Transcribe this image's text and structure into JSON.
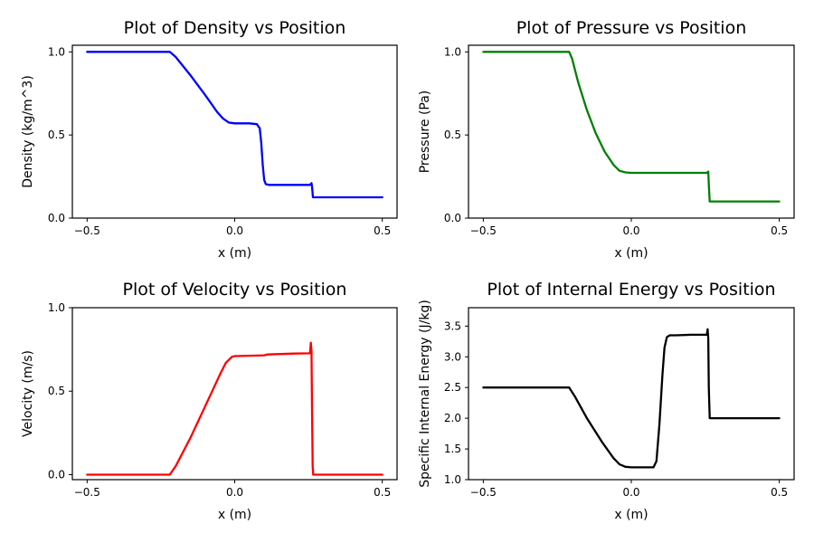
{
  "chart_data": [
    {
      "type": "line",
      "title": "Plot of Density vs Position",
      "xlabel": "x (m)",
      "ylabel": "Density (kg/m^3)",
      "xlim": [
        -0.55,
        0.55
      ],
      "ylim": [
        0.0,
        1.04
      ],
      "xticks": [
        -0.5,
        0.0,
        0.5
      ],
      "xtick_labels": [
        "−0.5",
        "0.0",
        "0.5"
      ],
      "yticks": [
        0.0,
        0.5,
        1.0
      ],
      "ytick_labels": [
        "0.0",
        "0.5",
        "1.0"
      ],
      "color": "#0000ff",
      "series": [
        {
          "x": [
            -0.5,
            -0.22,
            -0.2,
            -0.15,
            -0.1,
            -0.06,
            -0.04,
            -0.02,
            0.0,
            0.05,
            0.075,
            0.085,
            0.09,
            0.095,
            0.1,
            0.105,
            0.115,
            0.15,
            0.2,
            0.255,
            0.26,
            0.262,
            0.265,
            0.3,
            0.4,
            0.5
          ],
          "y": [
            1.0,
            1.0,
            0.97,
            0.86,
            0.74,
            0.64,
            0.6,
            0.575,
            0.57,
            0.57,
            0.565,
            0.54,
            0.45,
            0.32,
            0.23,
            0.205,
            0.2,
            0.2,
            0.2,
            0.2,
            0.21,
            0.19,
            0.125,
            0.125,
            0.125,
            0.125
          ]
        }
      ]
    },
    {
      "type": "line",
      "title": "Plot of Pressure vs Position",
      "xlabel": "x (m)",
      "ylabel": "Pressure (Pa)",
      "xlim": [
        -0.55,
        0.55
      ],
      "ylim": [
        0.0,
        1.04
      ],
      "xticks": [
        -0.5,
        0.0,
        0.5
      ],
      "xtick_labels": [
        "−0.5",
        "0.0",
        "0.5"
      ],
      "yticks": [
        0.0,
        0.5,
        1.0
      ],
      "ytick_labels": [
        "0.0",
        "0.5",
        "1.0"
      ],
      "color": "#008000",
      "series": [
        {
          "x": [
            -0.5,
            -0.21,
            -0.2,
            -0.18,
            -0.15,
            -0.12,
            -0.09,
            -0.06,
            -0.04,
            -0.02,
            0.0,
            0.1,
            0.2,
            0.255,
            0.26,
            0.262,
            0.265,
            0.3,
            0.4,
            0.5
          ],
          "y": [
            1.0,
            1.0,
            0.96,
            0.82,
            0.65,
            0.51,
            0.4,
            0.32,
            0.285,
            0.275,
            0.272,
            0.272,
            0.272,
            0.272,
            0.28,
            0.2,
            0.1,
            0.1,
            0.1,
            0.1
          ]
        }
      ]
    },
    {
      "type": "line",
      "title": "Plot of Velocity vs Position",
      "xlabel": "x (m)",
      "ylabel": "Velocity (m/s)",
      "xlim": [
        -0.55,
        0.55
      ],
      "ylim": [
        -0.03,
        1.0
      ],
      "xticks": [
        -0.5,
        0.0,
        0.5
      ],
      "xtick_labels": [
        "−0.5",
        "0.0",
        "0.5"
      ],
      "yticks": [
        0.0,
        0.5,
        1.0
      ],
      "ytick_labels": [
        "0.0",
        "0.5",
        "1.0"
      ],
      "color": "#ff0000",
      "series": [
        {
          "x": [
            -0.5,
            -0.22,
            -0.2,
            -0.15,
            -0.1,
            -0.05,
            -0.03,
            -0.01,
            0.0,
            0.1,
            0.11,
            0.2,
            0.255,
            0.258,
            0.26,
            0.262,
            0.264,
            0.266,
            0.3,
            0.4,
            0.5
          ],
          "y": [
            0.0,
            0.0,
            0.05,
            0.22,
            0.41,
            0.6,
            0.67,
            0.705,
            0.71,
            0.715,
            0.72,
            0.725,
            0.727,
            0.79,
            0.74,
            0.4,
            0.05,
            0.0,
            0.0,
            0.0,
            0.0
          ]
        }
      ]
    },
    {
      "type": "line",
      "title": "Plot of Internal Energy vs Position",
      "xlabel": "x (m)",
      "ylabel": "Specific Internal Energy (J/kg)",
      "xlim": [
        -0.55,
        0.55
      ],
      "ylim": [
        1.0,
        3.8
      ],
      "xticks": [
        -0.5,
        0.0,
        0.5
      ],
      "xtick_labels": [
        "−0.5",
        "0.0",
        "0.5"
      ],
      "yticks": [
        1.0,
        1.5,
        2.0,
        2.5,
        3.0,
        3.5
      ],
      "ytick_labels": [
        "1.0",
        "1.5",
        "2.0",
        "2.5",
        "3.0",
        "3.5"
      ],
      "color": "#000000",
      "series": [
        {
          "x": [
            -0.5,
            -0.21,
            -0.19,
            -0.15,
            -0.1,
            -0.06,
            -0.04,
            -0.02,
            0.0,
            0.075,
            0.085,
            0.095,
            0.105,
            0.112,
            0.12,
            0.13,
            0.15,
            0.2,
            0.255,
            0.258,
            0.26,
            0.262,
            0.265,
            0.3,
            0.4,
            0.5
          ],
          "y": [
            2.5,
            2.5,
            2.35,
            2.0,
            1.62,
            1.35,
            1.25,
            1.21,
            1.2,
            1.2,
            1.3,
            1.9,
            2.7,
            3.15,
            3.32,
            3.35,
            3.35,
            3.36,
            3.36,
            3.45,
            3.3,
            2.5,
            2.0,
            2.0,
            2.0,
            2.0
          ]
        }
      ]
    }
  ]
}
